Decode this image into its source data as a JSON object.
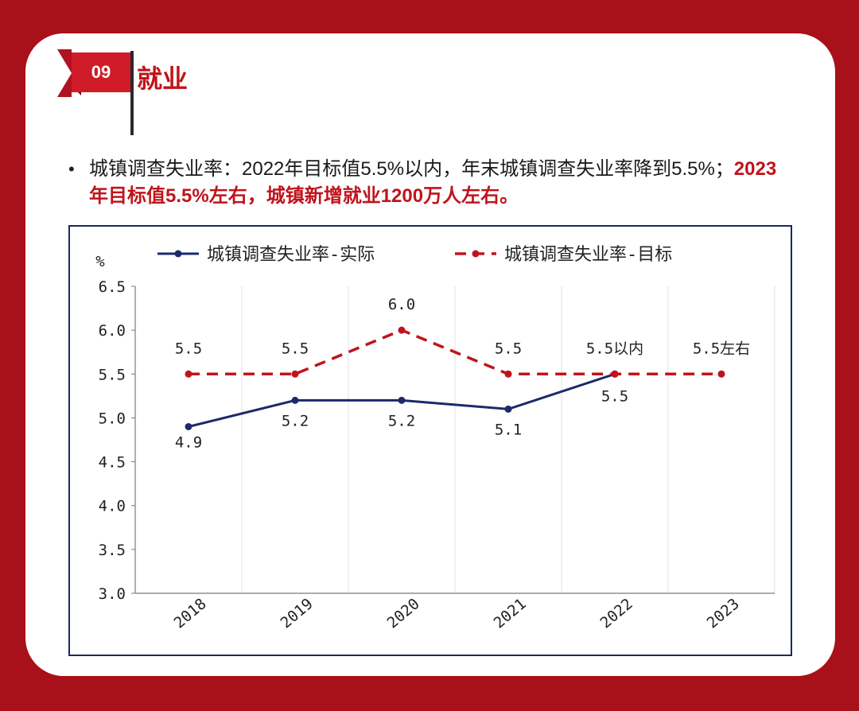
{
  "header": {
    "number": "09",
    "title": "就业"
  },
  "bullet": {
    "normal": "城镇调查失业率：2022年目标值5.5%以内，年末城镇调查失业率降到5.5%；",
    "highlight": "2023年目标值5.5%左右，城镇新增就业1200万人左右。"
  },
  "chart_data": {
    "type": "line",
    "categories": [
      "2018",
      "2019",
      "2020",
      "2021",
      "2022",
      "2023"
    ],
    "ylabel": "%",
    "ylim": [
      3.0,
      6.5
    ],
    "yticks": [
      "6.5",
      "6.0",
      "5.5",
      "5.0",
      "4.5",
      "4.0",
      "3.5",
      "3.0"
    ],
    "grid": "vertical",
    "legend_position": "top",
    "series": [
      {
        "name": "城镇调查失业率-实际",
        "color": "#1b2a6b",
        "style": "solid",
        "values": [
          4.9,
          5.2,
          5.2,
          5.1,
          5.5,
          null
        ],
        "labels": [
          "4.9",
          "5.2",
          "5.2",
          "5.1",
          "5.5",
          ""
        ]
      },
      {
        "name": "城镇调查失业率-目标",
        "color": "#c0141c",
        "style": "dashed",
        "values": [
          5.5,
          5.5,
          6.0,
          5.5,
          5.5,
          5.5
        ],
        "labels": [
          "5.5",
          "5.5",
          "6.0",
          "5.5",
          "5.5以内",
          "5.5左右"
        ]
      }
    ]
  }
}
